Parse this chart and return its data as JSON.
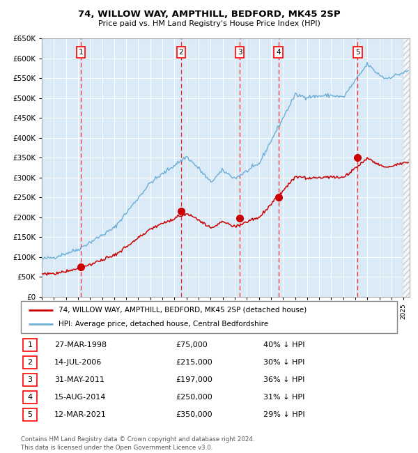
{
  "title": "74, WILLOW WAY, AMPTHILL, BEDFORD, MK45 2SP",
  "subtitle": "Price paid vs. HM Land Registry's House Price Index (HPI)",
  "ylim": [
    0,
    650000
  ],
  "yticks": [
    0,
    50000,
    100000,
    150000,
    200000,
    250000,
    300000,
    350000,
    400000,
    450000,
    500000,
    550000,
    600000,
    650000
  ],
  "xlim_start": 1995.0,
  "xlim_end": 2025.5,
  "bg_color": "#daeaf7",
  "hpi_color": "#6aaed6",
  "price_color": "#cc0000",
  "grid_color": "white",
  "sales": [
    {
      "num": 1,
      "date_label": "27-MAR-1998",
      "date_x": 1998.23,
      "price": 75000,
      "hpi_pct": "40% ↓ HPI"
    },
    {
      "num": 2,
      "date_label": "14-JUL-2006",
      "date_x": 2006.54,
      "price": 215000,
      "hpi_pct": "30% ↓ HPI"
    },
    {
      "num": 3,
      "date_label": "31-MAY-2011",
      "date_x": 2011.42,
      "price": 197000,
      "hpi_pct": "36% ↓ HPI"
    },
    {
      "num": 4,
      "date_label": "15-AUG-2014",
      "date_x": 2014.62,
      "price": 250000,
      "hpi_pct": "31% ↓ HPI"
    },
    {
      "num": 5,
      "date_label": "12-MAR-2021",
      "date_x": 2021.19,
      "price": 350000,
      "hpi_pct": "29% ↓ HPI"
    }
  ],
  "legend_line1": "74, WILLOW WAY, AMPTHILL, BEDFORD, MK45 2SP (detached house)",
  "legend_line2": "HPI: Average price, detached house, Central Bedfordshire",
  "table_rows": [
    [
      "1",
      "27-MAR-1998",
      "£75,000",
      "40% ↓ HPI"
    ],
    [
      "2",
      "14-JUL-2006",
      "£215,000",
      "30% ↓ HPI"
    ],
    [
      "3",
      "31-MAY-2011",
      "£197,000",
      "36% ↓ HPI"
    ],
    [
      "4",
      "15-AUG-2014",
      "£250,000",
      "31% ↓ HPI"
    ],
    [
      "5",
      "12-MAR-2021",
      "£350,000",
      "29% ↓ HPI"
    ]
  ],
  "footer": "Contains HM Land Registry data © Crown copyright and database right 2024.\nThis data is licensed under the Open Government Licence v3.0."
}
